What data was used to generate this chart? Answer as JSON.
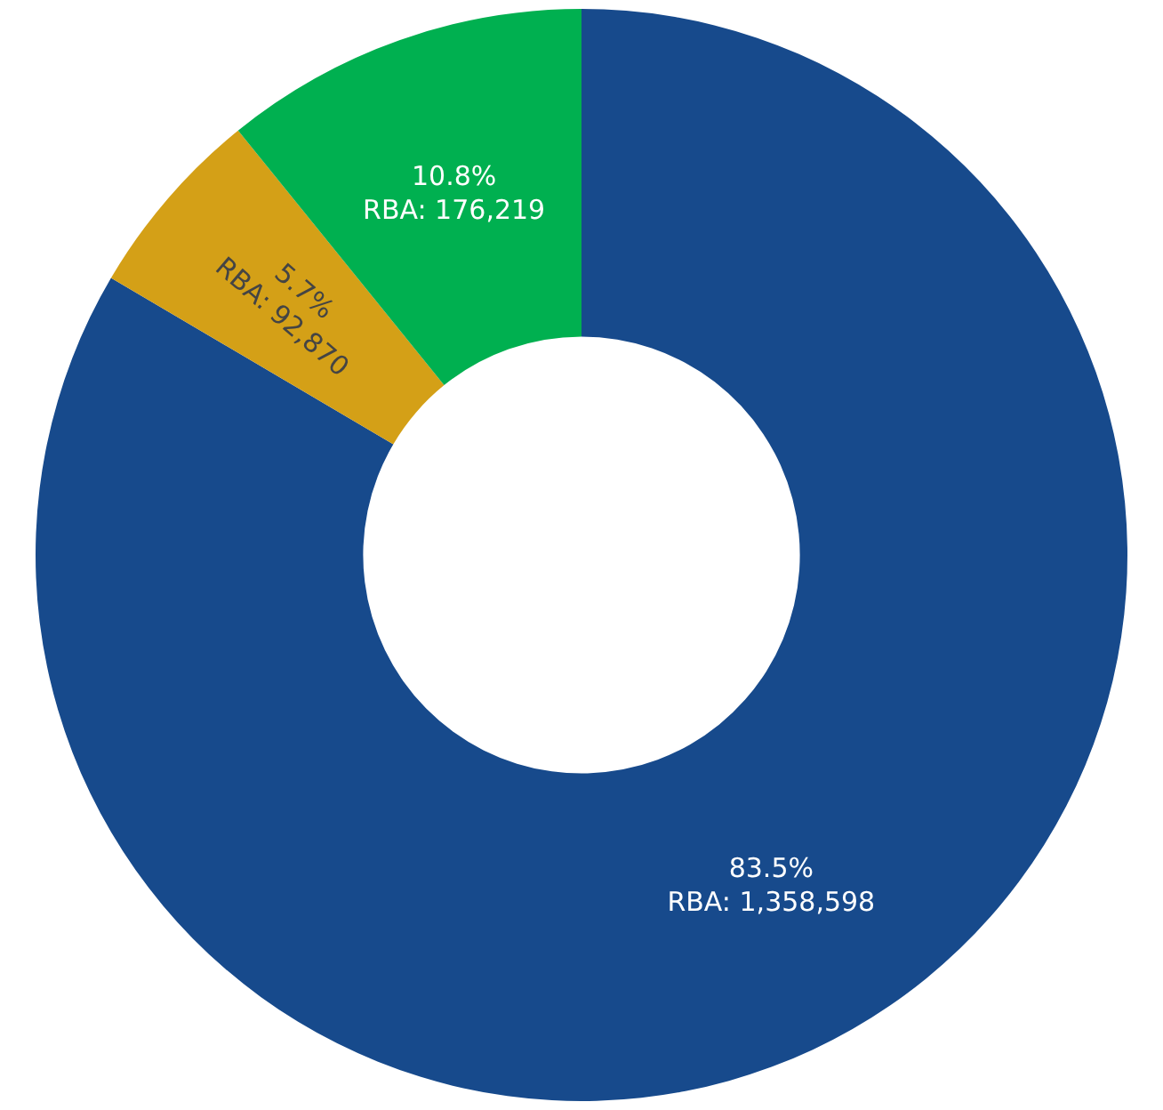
{
  "chart_data": {
    "type": "donut",
    "categories": [
      null,
      null,
      null
    ],
    "values": [
      1358598,
      92870,
      176219
    ],
    "colors": [
      "#174a8c",
      "#d4a017",
      "#00b050"
    ],
    "value_labels": [
      "83.5%\nRBA: 1,358,598",
      "5.7%\nRBA: 92,870",
      "10.8%\nRBA: 176,219"
    ],
    "legend": false
  }
}
